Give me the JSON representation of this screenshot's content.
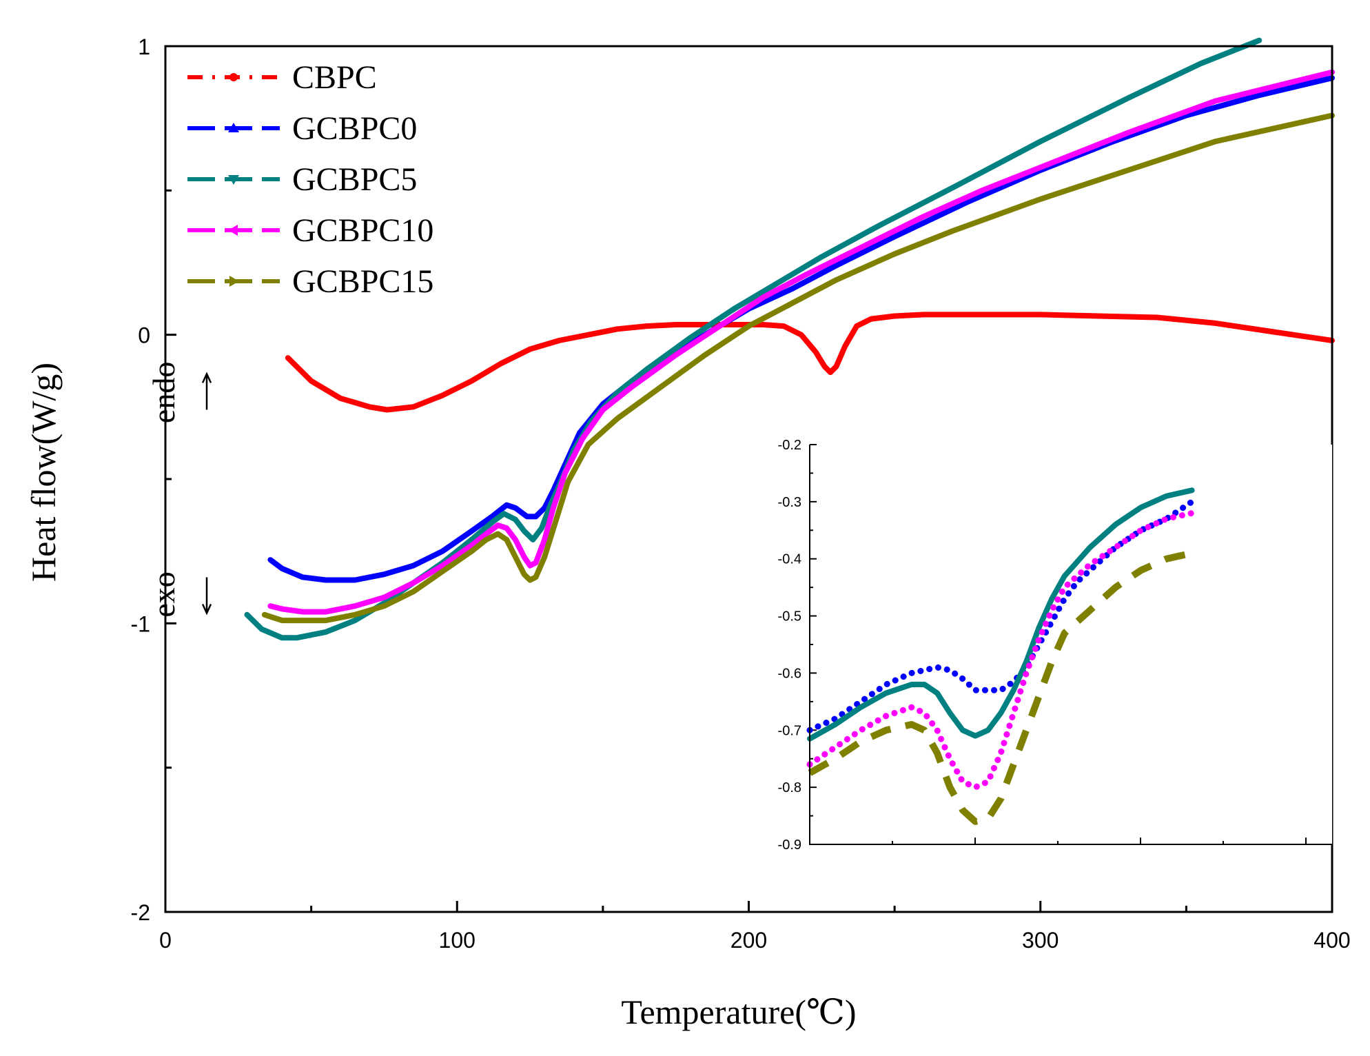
{
  "chart_data": [
    {
      "type": "line",
      "xlabel": "Temperature(℃)",
      "ylabel": "Heat flow(W/g)",
      "xlim": [
        0,
        400
      ],
      "ylim": [
        -2,
        1
      ],
      "xticks": [
        0,
        100,
        200,
        300,
        400
      ],
      "xtick_labels": [
        "0",
        "100",
        "200",
        "300",
        "400"
      ],
      "yticks": [
        -2,
        -1,
        0,
        1
      ],
      "ytick_labels": [
        "-2",
        "-1",
        "0",
        "1"
      ],
      "grid": false,
      "legend_position": "top-left",
      "annotations": [
        {
          "text": "endo",
          "arrow": "up",
          "x": 13,
          "y": -0.2
        },
        {
          "text": "exo",
          "arrow": "down",
          "x": 13,
          "y": -0.9
        }
      ],
      "series": [
        {
          "name": "CBPC",
          "color": "#ff0000",
          "marker": "circle",
          "x": [
            42,
            50,
            60,
            70,
            76,
            85,
            95,
            105,
            115,
            125,
            135,
            145,
            155,
            165,
            175,
            185,
            195,
            205,
            212,
            218,
            223,
            226,
            228,
            230,
            233,
            237,
            242,
            250,
            260,
            280,
            300,
            320,
            340,
            360,
            380,
            400
          ],
          "y": [
            -0.08,
            -0.16,
            -0.22,
            -0.25,
            -0.26,
            -0.25,
            -0.21,
            -0.16,
            -0.1,
            -0.05,
            -0.02,
            0.0,
            0.02,
            0.03,
            0.035,
            0.035,
            0.035,
            0.035,
            0.03,
            0.0,
            -0.06,
            -0.11,
            -0.13,
            -0.11,
            -0.04,
            0.03,
            0.055,
            0.065,
            0.07,
            0.07,
            0.07,
            0.065,
            0.06,
            0.04,
            0.01,
            -0.02
          ]
        },
        {
          "name": "GCBPC0",
          "color": "#0000ff",
          "marker": "triangle-up",
          "x": [
            36,
            40,
            47,
            55,
            65,
            75,
            85,
            95,
            105,
            112,
            117,
            120,
            124,
            127,
            130,
            133,
            137,
            142,
            150,
            160,
            175,
            190,
            200,
            215,
            230,
            250,
            275,
            300,
            325,
            350,
            375,
            400
          ],
          "y": [
            -0.78,
            -0.81,
            -0.84,
            -0.85,
            -0.85,
            -0.83,
            -0.8,
            -0.75,
            -0.68,
            -0.63,
            -0.59,
            -0.6,
            -0.63,
            -0.63,
            -0.6,
            -0.54,
            -0.45,
            -0.34,
            -0.24,
            -0.16,
            -0.06,
            0.03,
            0.09,
            0.16,
            0.24,
            0.34,
            0.46,
            0.57,
            0.67,
            0.76,
            0.83,
            0.89
          ]
        },
        {
          "name": "GCBPC5",
          "color": "#008080",
          "marker": "triangle-down",
          "x": [
            28,
            33,
            40,
            45,
            55,
            65,
            75,
            85,
            95,
            105,
            112,
            116,
            120,
            123,
            126,
            129,
            132,
            136,
            140,
            146,
            155,
            165,
            180,
            195,
            210,
            225,
            245,
            270,
            300,
            330,
            355,
            375
          ],
          "y": [
            -0.97,
            -1.02,
            -1.05,
            -1.05,
            -1.03,
            -0.99,
            -0.93,
            -0.86,
            -0.79,
            -0.71,
            -0.65,
            -0.62,
            -0.64,
            -0.68,
            -0.71,
            -0.67,
            -0.59,
            -0.5,
            -0.4,
            -0.3,
            -0.2,
            -0.12,
            -0.01,
            0.09,
            0.18,
            0.27,
            0.38,
            0.51,
            0.67,
            0.82,
            0.94,
            1.02
          ]
        },
        {
          "name": "GCBPC10",
          "color": "#ff00ff",
          "marker": "triangle-left",
          "x": [
            36,
            40,
            47,
            55,
            65,
            75,
            85,
            95,
            105,
            110,
            114,
            117,
            120,
            123,
            125,
            127,
            130,
            133,
            137,
            143,
            150,
            160,
            175,
            190,
            205,
            220,
            240,
            260,
            280,
            300,
            330,
            360,
            400
          ],
          "y": [
            -0.94,
            -0.95,
            -0.96,
            -0.96,
            -0.94,
            -0.91,
            -0.86,
            -0.8,
            -0.73,
            -0.69,
            -0.66,
            -0.67,
            -0.71,
            -0.77,
            -0.8,
            -0.79,
            -0.71,
            -0.6,
            -0.48,
            -0.36,
            -0.26,
            -0.18,
            -0.07,
            0.03,
            0.13,
            0.21,
            0.31,
            0.41,
            0.5,
            0.58,
            0.7,
            0.81,
            0.91
          ]
        },
        {
          "name": "GCBPC15",
          "color": "#808000",
          "marker": "triangle-right",
          "x": [
            34,
            40,
            47,
            55,
            65,
            75,
            85,
            95,
            105,
            110,
            114,
            117,
            120,
            123,
            125,
            127,
            130,
            134,
            138,
            145,
            155,
            170,
            185,
            200,
            215,
            230,
            250,
            270,
            300,
            330,
            360,
            400
          ],
          "y": [
            -0.97,
            -0.99,
            -0.99,
            -0.99,
            -0.97,
            -0.94,
            -0.89,
            -0.82,
            -0.75,
            -0.71,
            -0.69,
            -0.71,
            -0.77,
            -0.83,
            -0.85,
            -0.84,
            -0.77,
            -0.64,
            -0.51,
            -0.38,
            -0.29,
            -0.18,
            -0.07,
            0.03,
            0.11,
            0.19,
            0.28,
            0.36,
            0.47,
            0.57,
            0.67,
            0.76
          ]
        }
      ]
    },
    {
      "type": "line",
      "inset": true,
      "position": "lower-right",
      "xlabel": "",
      "ylabel": "",
      "xlim": [
        0,
        20.5
      ],
      "ylim": [
        -0.9,
        -0.2
      ],
      "yticks": [
        -0.9,
        -0.8,
        -0.7,
        -0.6,
        -0.5,
        -0.4,
        -0.3,
        -0.2
      ],
      "ytick_labels": [
        "-0.9",
        "-0.8",
        "-0.7",
        "-0.6",
        "-0.5",
        "-0.4",
        "-0.3",
        "-0.2"
      ],
      "series": [
        {
          "name": "GCBPC0",
          "color": "#0000ff",
          "style": "dotted",
          "x": [
            0,
            1,
            2,
            3,
            4,
            5,
            5.5,
            6,
            6.5,
            7,
            7.5,
            8,
            8.5,
            9,
            9.5,
            10,
            10.5,
            11,
            12,
            13,
            14,
            15
          ],
          "y": [
            -0.7,
            -0.68,
            -0.65,
            -0.62,
            -0.6,
            -0.59,
            -0.595,
            -0.61,
            -0.63,
            -0.63,
            -0.63,
            -0.615,
            -0.59,
            -0.55,
            -0.51,
            -0.47,
            -0.44,
            -0.42,
            -0.38,
            -0.35,
            -0.33,
            -0.3
          ]
        },
        {
          "name": "GCBPC5",
          "color": "#008080",
          "style": "solid",
          "x": [
            0,
            1,
            2,
            3,
            4,
            4.5,
            5,
            5.5,
            6,
            6.5,
            7,
            7.5,
            8,
            8.5,
            9,
            9.5,
            10,
            11,
            12,
            13,
            14,
            15
          ],
          "y": [
            -0.715,
            -0.69,
            -0.66,
            -0.635,
            -0.62,
            -0.62,
            -0.635,
            -0.67,
            -0.7,
            -0.71,
            -0.7,
            -0.67,
            -0.63,
            -0.58,
            -0.52,
            -0.47,
            -0.43,
            -0.38,
            -0.34,
            -0.31,
            -0.29,
            -0.28
          ]
        },
        {
          "name": "GCBPC10",
          "color": "#ff00ff",
          "style": "dotted",
          "x": [
            0,
            1,
            2,
            3,
            4,
            4.5,
            5,
            5.5,
            6,
            6.5,
            7,
            7.5,
            8,
            8.5,
            9,
            9.5,
            10,
            11,
            12,
            13,
            14,
            15
          ],
          "y": [
            -0.76,
            -0.73,
            -0.7,
            -0.675,
            -0.66,
            -0.67,
            -0.7,
            -0.75,
            -0.79,
            -0.8,
            -0.79,
            -0.74,
            -0.67,
            -0.6,
            -0.54,
            -0.49,
            -0.45,
            -0.41,
            -0.38,
            -0.35,
            -0.33,
            -0.32
          ]
        },
        {
          "name": "GCBPC15",
          "color": "#808000",
          "style": "dashed",
          "x": [
            0,
            1,
            2,
            3,
            4,
            4.5,
            5,
            5.5,
            6,
            6.5,
            7,
            7.5,
            8,
            8.5,
            9,
            9.5,
            10,
            11,
            12,
            13,
            14,
            15
          ],
          "y": [
            -0.775,
            -0.75,
            -0.72,
            -0.7,
            -0.69,
            -0.7,
            -0.74,
            -0.8,
            -0.84,
            -0.86,
            -0.855,
            -0.82,
            -0.76,
            -0.7,
            -0.64,
            -0.58,
            -0.53,
            -0.49,
            -0.45,
            -0.42,
            -0.4,
            -0.39
          ]
        }
      ]
    }
  ]
}
